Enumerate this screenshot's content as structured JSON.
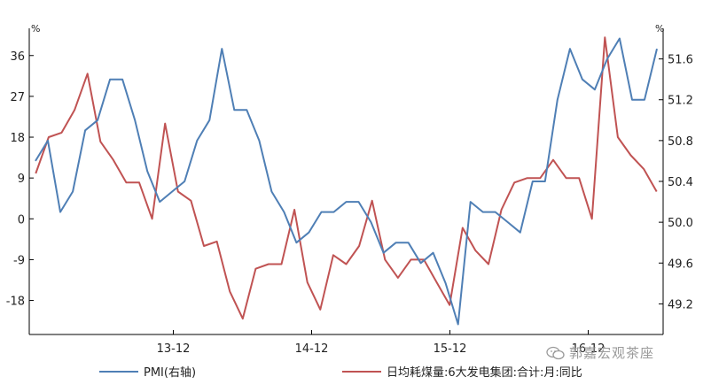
{
  "chart_data": {
    "type": "line",
    "left_axis": {
      "unit": "%",
      "ticks": [
        36,
        27,
        18,
        9,
        0,
        -9,
        -18
      ],
      "ylim": [
        -25.5,
        42
      ]
    },
    "right_axis": {
      "unit": "%",
      "ticks": [
        51.6,
        51.2,
        50.8,
        50.4,
        50.0,
        49.6,
        49.2
      ],
      "ylim": [
        48.9,
        51.9
      ]
    },
    "x_ticks": [
      {
        "label": "13-12",
        "index": 12
      },
      {
        "label": "14-12",
        "index": 24
      },
      {
        "label": "15-12",
        "index": 36
      },
      {
        "label": "16-12",
        "index": 48
      }
    ],
    "n_points": 55,
    "series": [
      {
        "name": "PMI(右轴)",
        "axis": "right",
        "color": "#4f7fb5",
        "values": [
          50.6,
          50.8,
          50.1,
          50.3,
          50.9,
          51.0,
          51.4,
          51.4,
          51.0,
          50.5,
          50.2,
          50.3,
          50.4,
          50.8,
          51.0,
          51.7,
          51.1,
          51.1,
          50.8,
          50.3,
          50.1,
          49.8,
          49.9,
          50.1,
          50.1,
          50.2,
          50.2,
          50.0,
          49.7,
          49.8,
          49.8,
          49.6,
          49.7,
          49.4,
          49.0,
          50.2,
          50.1,
          50.1,
          50.0,
          49.9,
          50.4,
          50.4,
          51.2,
          51.7,
          51.4,
          51.3,
          51.6,
          51.8,
          51.2,
          51.2,
          51.7
        ]
      },
      {
        "name": "日均耗煤量:6大发电集团:合计:月:同比",
        "axis": "left",
        "color": "#c05353",
        "values": [
          10,
          18,
          19,
          24,
          32,
          17,
          13,
          8,
          8,
          0,
          21,
          6,
          4,
          -6,
          -5,
          -16,
          -22,
          -11,
          -10,
          -10,
          2,
          -14,
          -20,
          -8,
          -10,
          -6,
          4,
          -9,
          -13,
          -9,
          -9,
          -14,
          -19,
          -2,
          -7,
          -10,
          2,
          8,
          9,
          9,
          13,
          9,
          9,
          0,
          40,
          18,
          14,
          11,
          6
        ]
      }
    ]
  },
  "legend": {
    "pmi_label": "PMI(右轴)",
    "coal_label": "日均耗煤量:6大发电集团:合计:月:同比"
  },
  "watermark": {
    "text": "郭嘉宏观茶座",
    "icon": "wechat-icon"
  }
}
